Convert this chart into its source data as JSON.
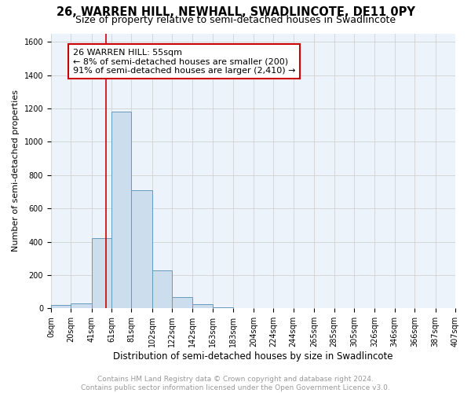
{
  "title1": "26, WARREN HILL, NEWHALL, SWADLINCOTE, DE11 0PY",
  "title2": "Size of property relative to semi-detached houses in Swadlincote",
  "xlabel": "Distribution of semi-detached houses by size in Swadlincote",
  "ylabel": "Number of semi-detached properties",
  "footer1": "Contains HM Land Registry data © Crown copyright and database right 2024.",
  "footer2": "Contains public sector information licensed under the Open Government Licence v3.0.",
  "bin_edges": [
    0,
    20,
    41,
    61,
    81,
    102,
    122,
    142,
    163,
    183,
    204,
    224,
    244,
    265,
    285,
    305,
    326,
    346,
    366,
    387,
    407
  ],
  "bin_labels": [
    "0sqm",
    "20sqm",
    "41sqm",
    "61sqm",
    "81sqm",
    "102sqm",
    "122sqm",
    "142sqm",
    "163sqm",
    "183sqm",
    "204sqm",
    "224sqm",
    "244sqm",
    "265sqm",
    "285sqm",
    "305sqm",
    "326sqm",
    "346sqm",
    "366sqm",
    "387sqm",
    "407sqm"
  ],
  "bar_heights": [
    20,
    30,
    420,
    1180,
    710,
    230,
    70,
    25,
    5,
    0,
    0,
    0,
    0,
    0,
    0,
    0,
    0,
    0,
    0,
    0
  ],
  "bar_color": "#ccdded",
  "bar_edge_color": "#6699bb",
  "property_size": 55,
  "vline_color": "#cc0000",
  "annotation_line1": "26 WARREN HILL: 55sqm",
  "annotation_line2": "← 8% of semi-detached houses are smaller (200)",
  "annotation_line3": "91% of semi-detached houses are larger (2,410) →",
  "annotation_box_color": "#ffffff",
  "annotation_box_edge_color": "#cc0000",
  "ylim": [
    0,
    1650
  ],
  "yticks": [
    0,
    200,
    400,
    600,
    800,
    1000,
    1200,
    1400,
    1600
  ],
  "grid_color": "#cccccc",
  "bg_color": "#edf3fa",
  "title1_fontsize": 10.5,
  "title2_fontsize": 9,
  "xlabel_fontsize": 8.5,
  "ylabel_fontsize": 8,
  "tick_fontsize": 7,
  "annotation_fontsize": 8,
  "footer_fontsize": 6.5,
  "footer_color": "#999999"
}
